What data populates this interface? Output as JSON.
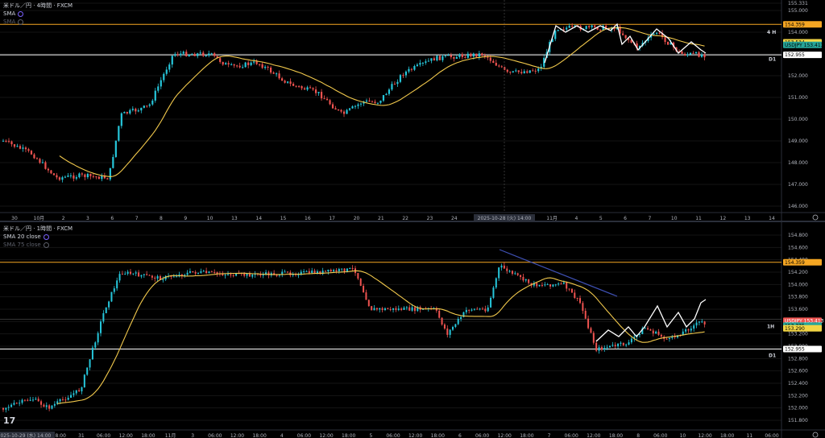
{
  "top": {
    "title": "米ドル／円 · 4時間 · FXCM",
    "indicator": "SMA",
    "indicator2": "SMA",
    "tf_label_main": "4 H",
    "tf_label_d1": "D1",
    "price_ticks": [
      "155.331",
      "155.000",
      "154.000",
      "153.000",
      "152.000",
      "151.000",
      "150.000",
      "149.000",
      "148.000",
      "147.000",
      "146.000"
    ],
    "tags": [
      {
        "text": "154.359",
        "bg": "#f5a623",
        "fg": "#000"
      },
      {
        "text": "153.534",
        "bg": "#f2d544",
        "fg": "#000"
      },
      {
        "text": "USDJPY 153.413",
        "bg": "#26a69a",
        "fg": "#000"
      },
      {
        "text": "152.955",
        "bg": "#ffffff",
        "fg": "#000"
      }
    ],
    "time_ticks": [
      "30",
      "10月",
      "2",
      "3",
      "6",
      "7",
      "8",
      "9",
      "10",
      "13",
      "14",
      "15",
      "16",
      "17",
      "20",
      "21",
      "22",
      "23",
      "24",
      "27",
      "30",
      "31",
      "11月",
      "4",
      "5",
      "6",
      "7",
      "10",
      "11",
      "12",
      "13",
      "14"
    ],
    "crosshair_time": "2025-10-28 (火)  14:00"
  },
  "bottom": {
    "title": "米ドル／円 · 1時間 · FXCM",
    "indicator": "SMA 20 close",
    "indicator2": "SMA 75 close",
    "tf_label_main": "1H",
    "tf_label_d1": "D1",
    "price_ticks": [
      "154.800",
      "154.600",
      "154.400",
      "154.200",
      "154.000",
      "153.800",
      "153.600",
      "153.400",
      "153.200",
      "153.000",
      "152.800",
      "152.600",
      "152.400",
      "152.200",
      "152.000",
      "151.800"
    ],
    "tags": [
      {
        "text": "154.359",
        "bg": "#f5a623",
        "fg": "#000"
      },
      {
        "text": "USDJPY 153.413",
        "bg": "#ef5350",
        "fg": "#fff"
      },
      {
        "text": "153.335",
        "bg": "#26a69a",
        "fg": "#000"
      },
      {
        "text": "153.290",
        "bg": "#f2d544",
        "fg": "#000"
      },
      {
        "text": "152.955",
        "bg": "#ffffff",
        "fg": "#000"
      }
    ],
    "time_ticks": [
      "06:00",
      "12:00",
      "18:00",
      "31",
      "06:00",
      "12:00",
      "18:00",
      "11月",
      "3",
      "06:00",
      "12:00",
      "18:00",
      "4",
      "06:00",
      "12:00",
      "18:00",
      "5",
      "06:00",
      "12:00",
      "18:00",
      "6",
      "06:00",
      "12:00",
      "18:00",
      "7",
      "06:00",
      "12:00",
      "18:00",
      "8",
      "06:00",
      "10",
      "12:00",
      "18:00",
      "11",
      "06:00"
    ],
    "crosshair_time": "2025-10-29 (水)  14:00"
  },
  "colors": {
    "up": "#26c6da",
    "down": "#ef5350",
    "sma": "#f2c94c",
    "orange_line": "#f5a623",
    "white_line": "#ffffff",
    "trendline": "#3f51b5"
  },
  "chart_data": [
    {
      "type": "candlestick",
      "title": "米ドル／円 · 4時間 · FXCM",
      "ylim": [
        146.0,
        155.331
      ],
      "series": [
        {
          "name": "SMA"
        }
      ],
      "levels": [
        154.359,
        152.955
      ]
    },
    {
      "type": "candlestick",
      "title": "米ドル／円 · 1時間 · FXCM",
      "ylim": [
        151.8,
        154.8
      ],
      "series": [
        {
          "name": "SMA 20 close"
        },
        {
          "name": "SMA 75 close"
        }
      ],
      "levels": [
        154.359,
        152.955
      ]
    }
  ]
}
